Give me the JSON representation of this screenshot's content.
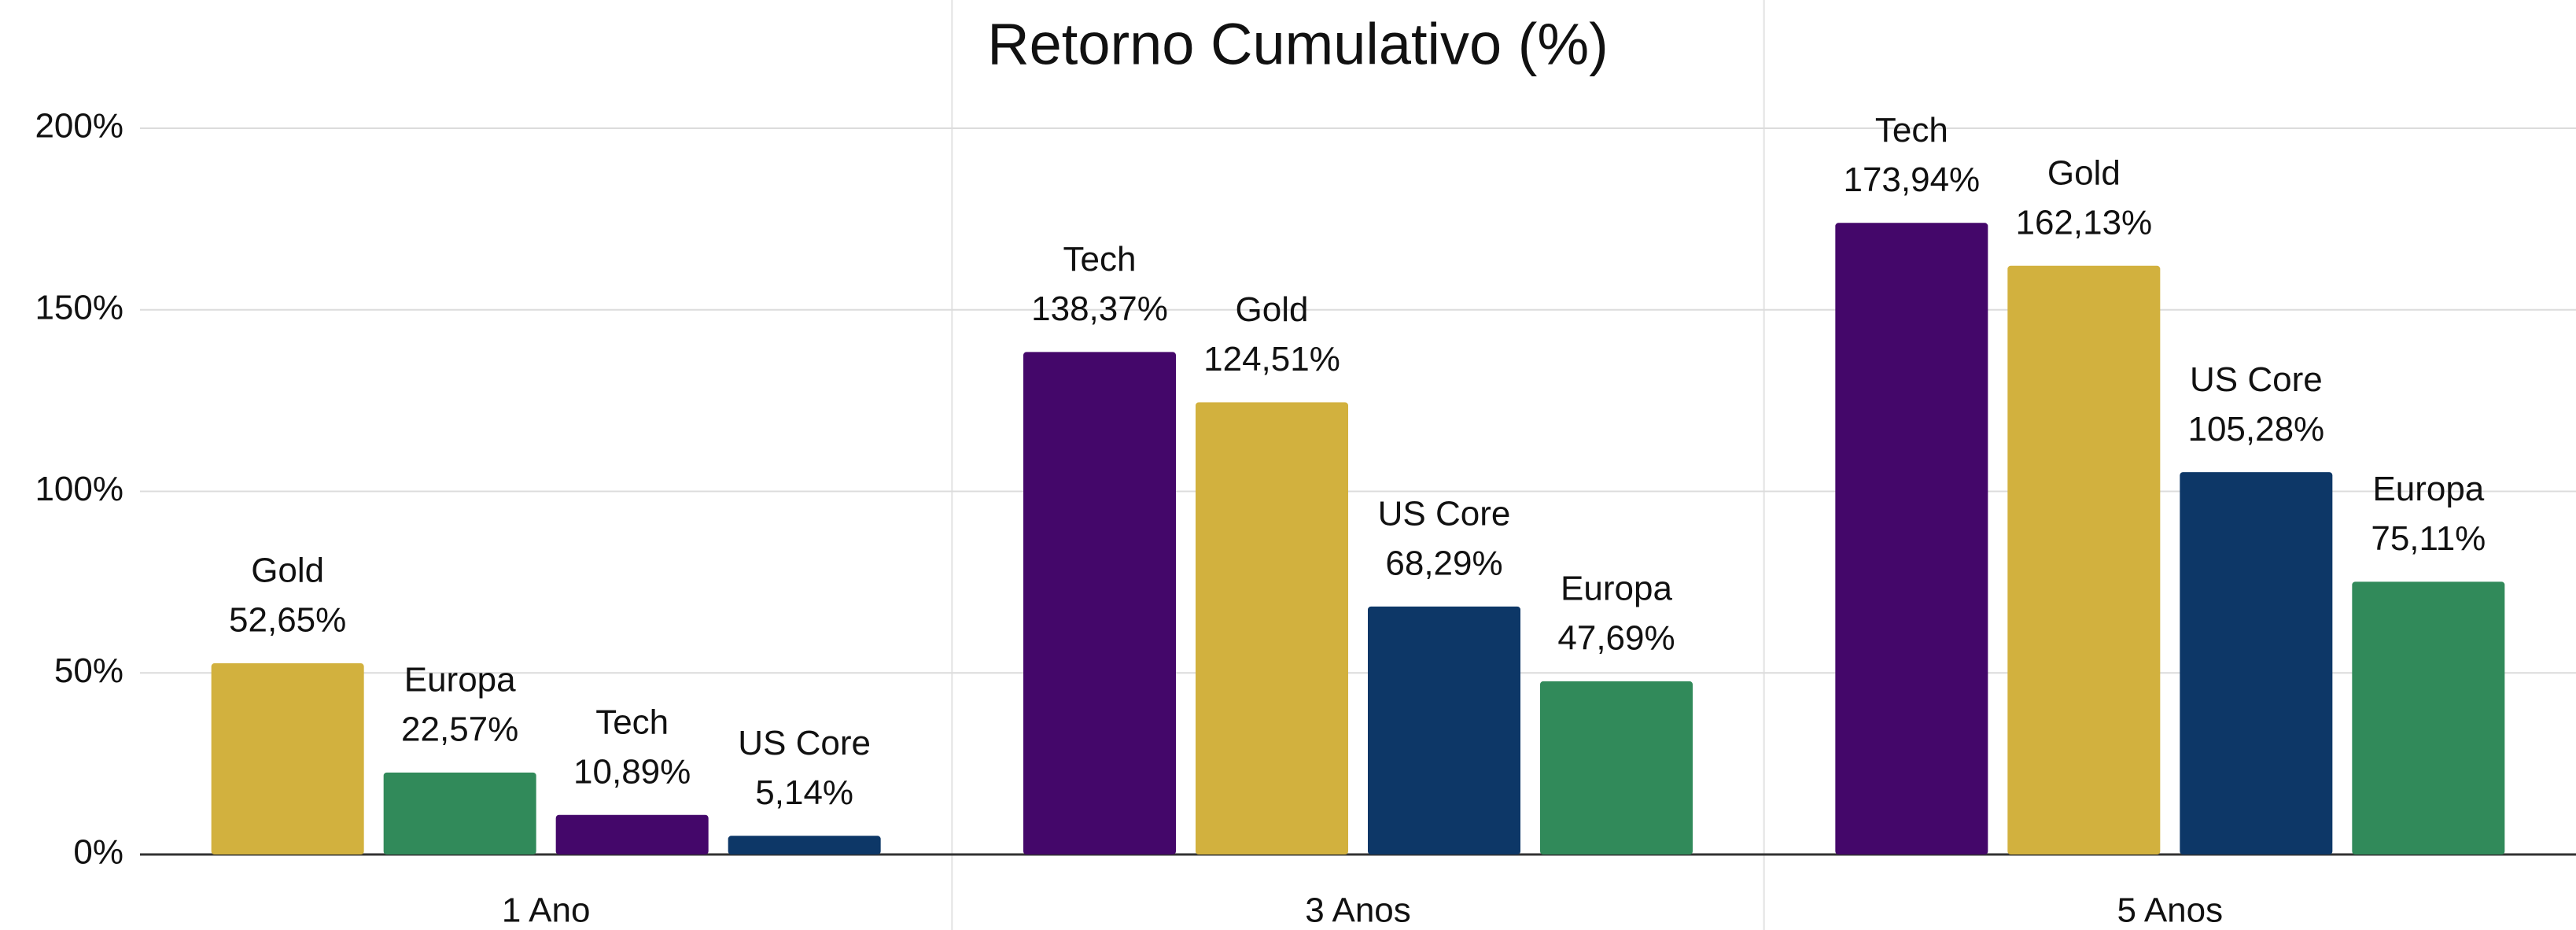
{
  "chart_data": {
    "type": "bar",
    "title": "Retorno Cumulativo (%)",
    "groups": [
      {
        "category": "1 Ano",
        "bars": [
          {
            "name": "Gold",
            "color": "#d2b13e",
            "value": 52.65,
            "value_label": "52,65%"
          },
          {
            "name": "Europa",
            "color": "#318a5a",
            "value": 22.57,
            "value_label": "22,57%"
          },
          {
            "name": "Tech",
            "color": "#44076a",
            "value": 10.89,
            "value_label": "10,89%"
          },
          {
            "name": "US Core",
            "color": "#0d3767",
            "value": 5.14,
            "value_label": "5,14%"
          }
        ]
      },
      {
        "category": "3 Anos",
        "bars": [
          {
            "name": "Tech",
            "color": "#44076a",
            "value": 138.37,
            "value_label": "138,37%"
          },
          {
            "name": "Gold",
            "color": "#d2b13e",
            "value": 124.51,
            "value_label": "124,51%"
          },
          {
            "name": "US Core",
            "color": "#0d3767",
            "value": 68.29,
            "value_label": "68,29%"
          },
          {
            "name": "Europa",
            "color": "#318a5a",
            "value": 47.69,
            "value_label": "47,69%"
          }
        ]
      },
      {
        "category": "5 Anos",
        "bars": [
          {
            "name": "Tech",
            "color": "#44076a",
            "value": 173.94,
            "value_label": "173,94%"
          },
          {
            "name": "Gold",
            "color": "#d2b13e",
            "value": 162.13,
            "value_label": "162,13%"
          },
          {
            "name": "US Core",
            "color": "#0d3767",
            "value": 105.28,
            "value_label": "105,28%"
          },
          {
            "name": "Europa",
            "color": "#318a5a",
            "value": 75.11,
            "value_label": "75,11%"
          }
        ]
      }
    ],
    "ylim": [
      0,
      200
    ],
    "yticks": [
      {
        "value": 0,
        "label": "0%"
      },
      {
        "value": 50,
        "label": "50%"
      },
      {
        "value": 100,
        "label": "100%"
      },
      {
        "value": 150,
        "label": "150%"
      },
      {
        "value": 200,
        "label": "200%"
      }
    ],
    "grid": true
  }
}
